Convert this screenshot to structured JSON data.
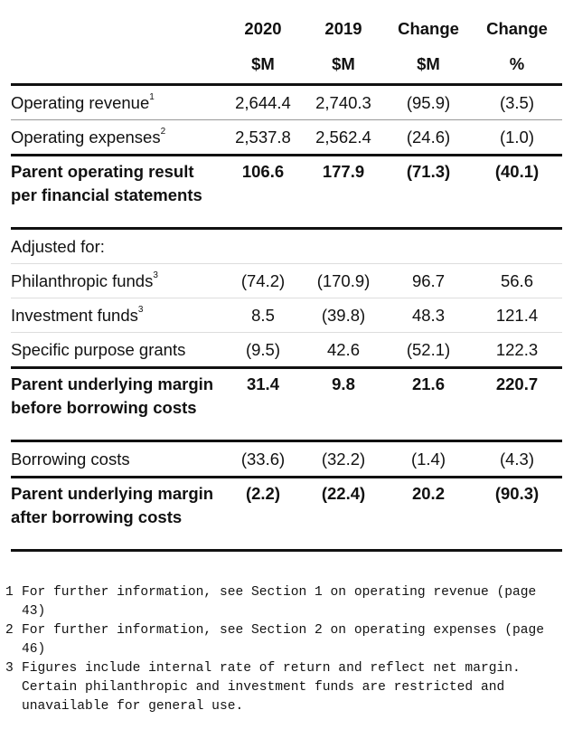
{
  "header": {
    "col1": [
      "2020",
      "$M"
    ],
    "col2": [
      "2019",
      "$M"
    ],
    "col3": [
      "Change",
      "$M"
    ],
    "col4": [
      "Change",
      "%"
    ]
  },
  "rows": [
    {
      "label": "Operating revenue",
      "sup": "1",
      "v": [
        "2,644.4",
        "2,740.3",
        "(95.9)",
        "(3.5)"
      ]
    },
    {
      "label": "Operating expenses",
      "sup": "2",
      "v": [
        "2,537.8",
        "2,562.4",
        "(24.6)",
        "(1.0)"
      ]
    },
    {
      "label": "Parent operating result per financial statements",
      "v": [
        "106.6",
        "177.9",
        "(71.3)",
        "(40.1)"
      ]
    },
    {
      "label": "Adjusted for:"
    },
    {
      "label": "Philanthropic funds",
      "sup": "3",
      "v": [
        "(74.2)",
        "(170.9)",
        "96.7",
        "56.6"
      ]
    },
    {
      "label": "Investment funds",
      "sup": "3",
      "v": [
        "8.5",
        "(39.8)",
        "48.3",
        "121.4"
      ]
    },
    {
      "label": "Specific purpose grants",
      "v": [
        "(9.5)",
        "42.6",
        "(52.1)",
        "122.3"
      ]
    },
    {
      "label": "Parent underlying margin before borrowing costs",
      "v": [
        "31.4",
        "9.8",
        "21.6",
        "220.7"
      ]
    },
    {
      "label": "Borrowing costs",
      "v": [
        "(33.6)",
        "(32.2)",
        "(1.4)",
        "(4.3)"
      ]
    },
    {
      "label": "Parent underlying margin after borrowing costs",
      "v": [
        "(2.2)",
        "(22.4)",
        "20.2",
        "(90.3)"
      ]
    }
  ],
  "footnotes": [
    {
      "num": "1",
      "text": "For further information, see Section 1 on operating revenue (page 43)"
    },
    {
      "num": "2",
      "text": "For further information, see Section 2 on operating expenses (page 46)"
    },
    {
      "num": "3",
      "text": "Figures include internal rate of return and reflect net margin. Certain philanthropic and investment funds are restricted and unavailable for general use."
    }
  ]
}
